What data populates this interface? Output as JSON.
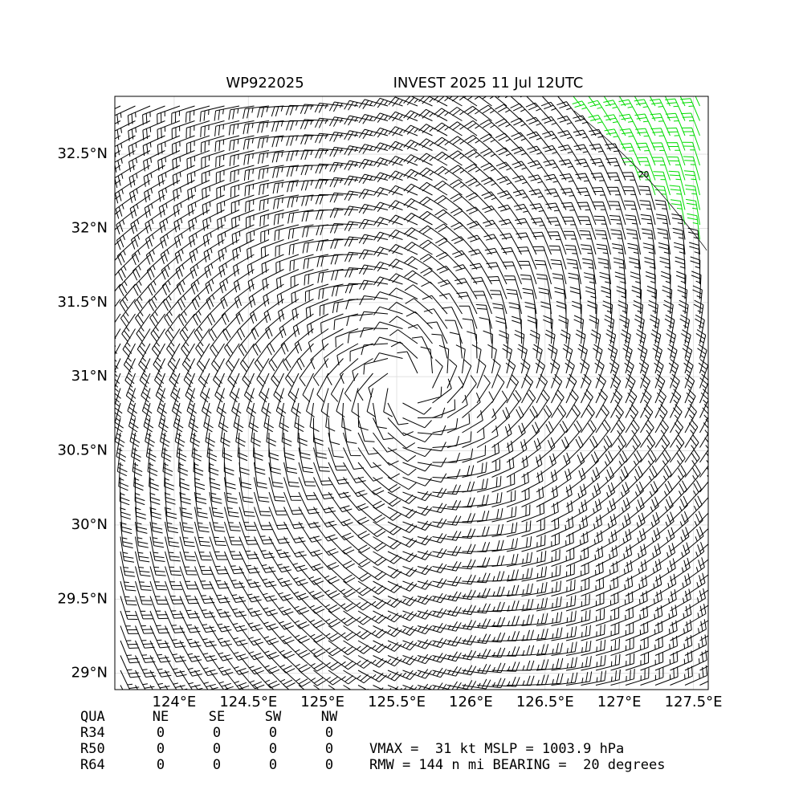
{
  "chart_data": {
    "type": "barbs",
    "title_left": "WP922025",
    "title_right": "INVEST 2025 11 Jul 12UTC",
    "xlim": [
      123.6,
      127.6
    ],
    "ylim": [
      28.89,
      32.89
    ],
    "xticks": [
      {
        "value": 124,
        "label": "124°E"
      },
      {
        "value": 124.5,
        "label": "124.5°E"
      },
      {
        "value": 125,
        "label": "125°E"
      },
      {
        "value": 125.5,
        "label": "125.5°E"
      },
      {
        "value": 126,
        "label": "126°E"
      },
      {
        "value": 126.5,
        "label": "126.5°E"
      },
      {
        "value": 127,
        "label": "127°E"
      },
      {
        "value": 127.5,
        "label": "127.5°E"
      }
    ],
    "yticks": [
      {
        "value": 29,
        "label": "29°N"
      },
      {
        "value": 29.5,
        "label": "29.5°N"
      },
      {
        "value": 30,
        "label": "30°N"
      },
      {
        "value": 30.5,
        "label": "30.5°N"
      },
      {
        "value": 31,
        "label": "31°N"
      },
      {
        "value": 31.5,
        "label": "31.5°N"
      },
      {
        "value": 32,
        "label": "32°N"
      },
      {
        "value": 32.5,
        "label": "32.5°N"
      }
    ],
    "contour_label": "20",
    "grid": true
  },
  "table": {
    "header": [
      "QUA",
      "NE",
      "SE",
      "SW",
      "NW"
    ],
    "rows": [
      [
        "R34",
        0,
        0,
        0,
        0
      ],
      [
        "R50",
        0,
        0,
        0,
        0
      ],
      [
        "R64",
        0,
        0,
        0,
        0
      ]
    ]
  },
  "info": [
    "VMAX =  31 kt MSLP = 1003.9 hPa",
    "RMW = 144 n mi BEARING =  20 degrees"
  ]
}
